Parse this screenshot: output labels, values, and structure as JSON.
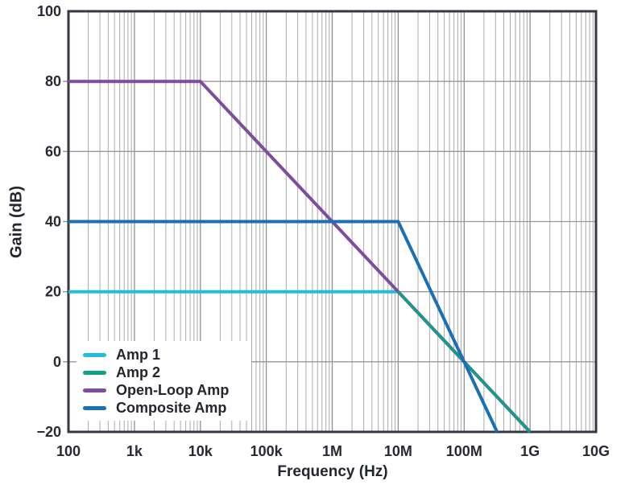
{
  "chart_data": {
    "type": "line",
    "title": "",
    "xlabel": "Frequency (Hz)",
    "ylabel": "Gain (dB)",
    "x_scale": "log",
    "xlim_hz": [
      100,
      10000000000
    ],
    "ylim_db": [
      -20,
      100
    ],
    "grid": {
      "minor_verticals": true,
      "minor_color": "#aaaaac",
      "major_color": "#8f8f93",
      "horizontal_color": "#98989c",
      "border_color": "#343842"
    },
    "x_ticks": [
      {
        "hz": 100,
        "label": "100"
      },
      {
        "hz": 1000,
        "label": "1k"
      },
      {
        "hz": 10000,
        "label": "10k"
      },
      {
        "hz": 100000,
        "label": "100k"
      },
      {
        "hz": 1000000,
        "label": "1M"
      },
      {
        "hz": 10000000,
        "label": "10M"
      },
      {
        "hz": 100000000,
        "label": "100M"
      },
      {
        "hz": 1000000000,
        "label": "1G"
      },
      {
        "hz": 10000000000,
        "label": "10G"
      }
    ],
    "y_ticks": [
      {
        "db": 100,
        "label": "100"
      },
      {
        "db": 80,
        "label": "80"
      },
      {
        "db": 60,
        "label": "60"
      },
      {
        "db": 40,
        "label": "40"
      },
      {
        "db": 20,
        "label": "20"
      },
      {
        "db": 0,
        "label": "0"
      },
      {
        "db": -20,
        "label": "−20"
      }
    ],
    "series": [
      {
        "name": "Amp 1",
        "color": "#20bedc",
        "width": 4,
        "points_hz_db": [
          [
            100,
            20
          ],
          [
            10000000,
            20
          ],
          [
            1000000000,
            -20
          ]
        ]
      },
      {
        "name": "Open-Loop Amp",
        "color": "#7f4c9e",
        "width": 4,
        "points_hz_db": [
          [
            100,
            80
          ],
          [
            10000,
            80
          ],
          [
            1000000000,
            -20
          ]
        ]
      },
      {
        "name": "Amp 2",
        "color": "#0ba287",
        "width": 3,
        "points_hz_db": [
          [
            10000000,
            20
          ],
          [
            1000000000,
            -20
          ]
        ]
      },
      {
        "name": "Composite Amp",
        "color": "#1a6fb5",
        "width": 4,
        "points_hz_db": [
          [
            100,
            40
          ],
          [
            10000000,
            40
          ],
          [
            316000000,
            -20
          ]
        ]
      }
    ],
    "legend": {
      "position": "bottom-left",
      "entries": [
        {
          "label": "Amp 1",
          "color": "#20bedc"
        },
        {
          "label": "Amp 2",
          "color": "#0ba287"
        },
        {
          "label": "Open-Loop Amp",
          "color": "#7f4c9e"
        },
        {
          "label": "Composite Amp",
          "color": "#1a6fb5"
        }
      ]
    }
  }
}
